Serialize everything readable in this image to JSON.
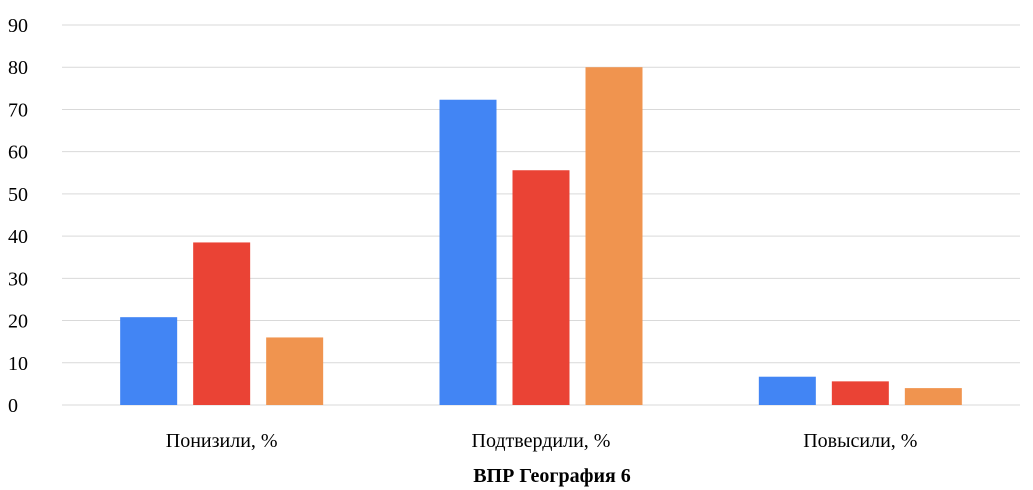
{
  "chart_data": {
    "type": "bar",
    "title": "ВПР География 6",
    "xlabel": "",
    "ylabel": "",
    "categories": [
      "Понизили, %",
      "Подтвердили, %",
      "Повысили, %"
    ],
    "series": [
      {
        "values": [
          20.8,
          72.3,
          6.7
        ],
        "color": "#4285f4"
      },
      {
        "values": [
          38.5,
          55.6,
          5.6
        ],
        "color": "#ea4335"
      },
      {
        "values": [
          16.0,
          80.0,
          4.0
        ],
        "color": "#f0944f"
      }
    ],
    "ylim": [
      0,
      90
    ],
    "yticks": [
      "0",
      "10",
      "20",
      "30",
      "40",
      "50",
      "60",
      "70",
      "80",
      "90"
    ],
    "grid": true,
    "legend": "none"
  }
}
